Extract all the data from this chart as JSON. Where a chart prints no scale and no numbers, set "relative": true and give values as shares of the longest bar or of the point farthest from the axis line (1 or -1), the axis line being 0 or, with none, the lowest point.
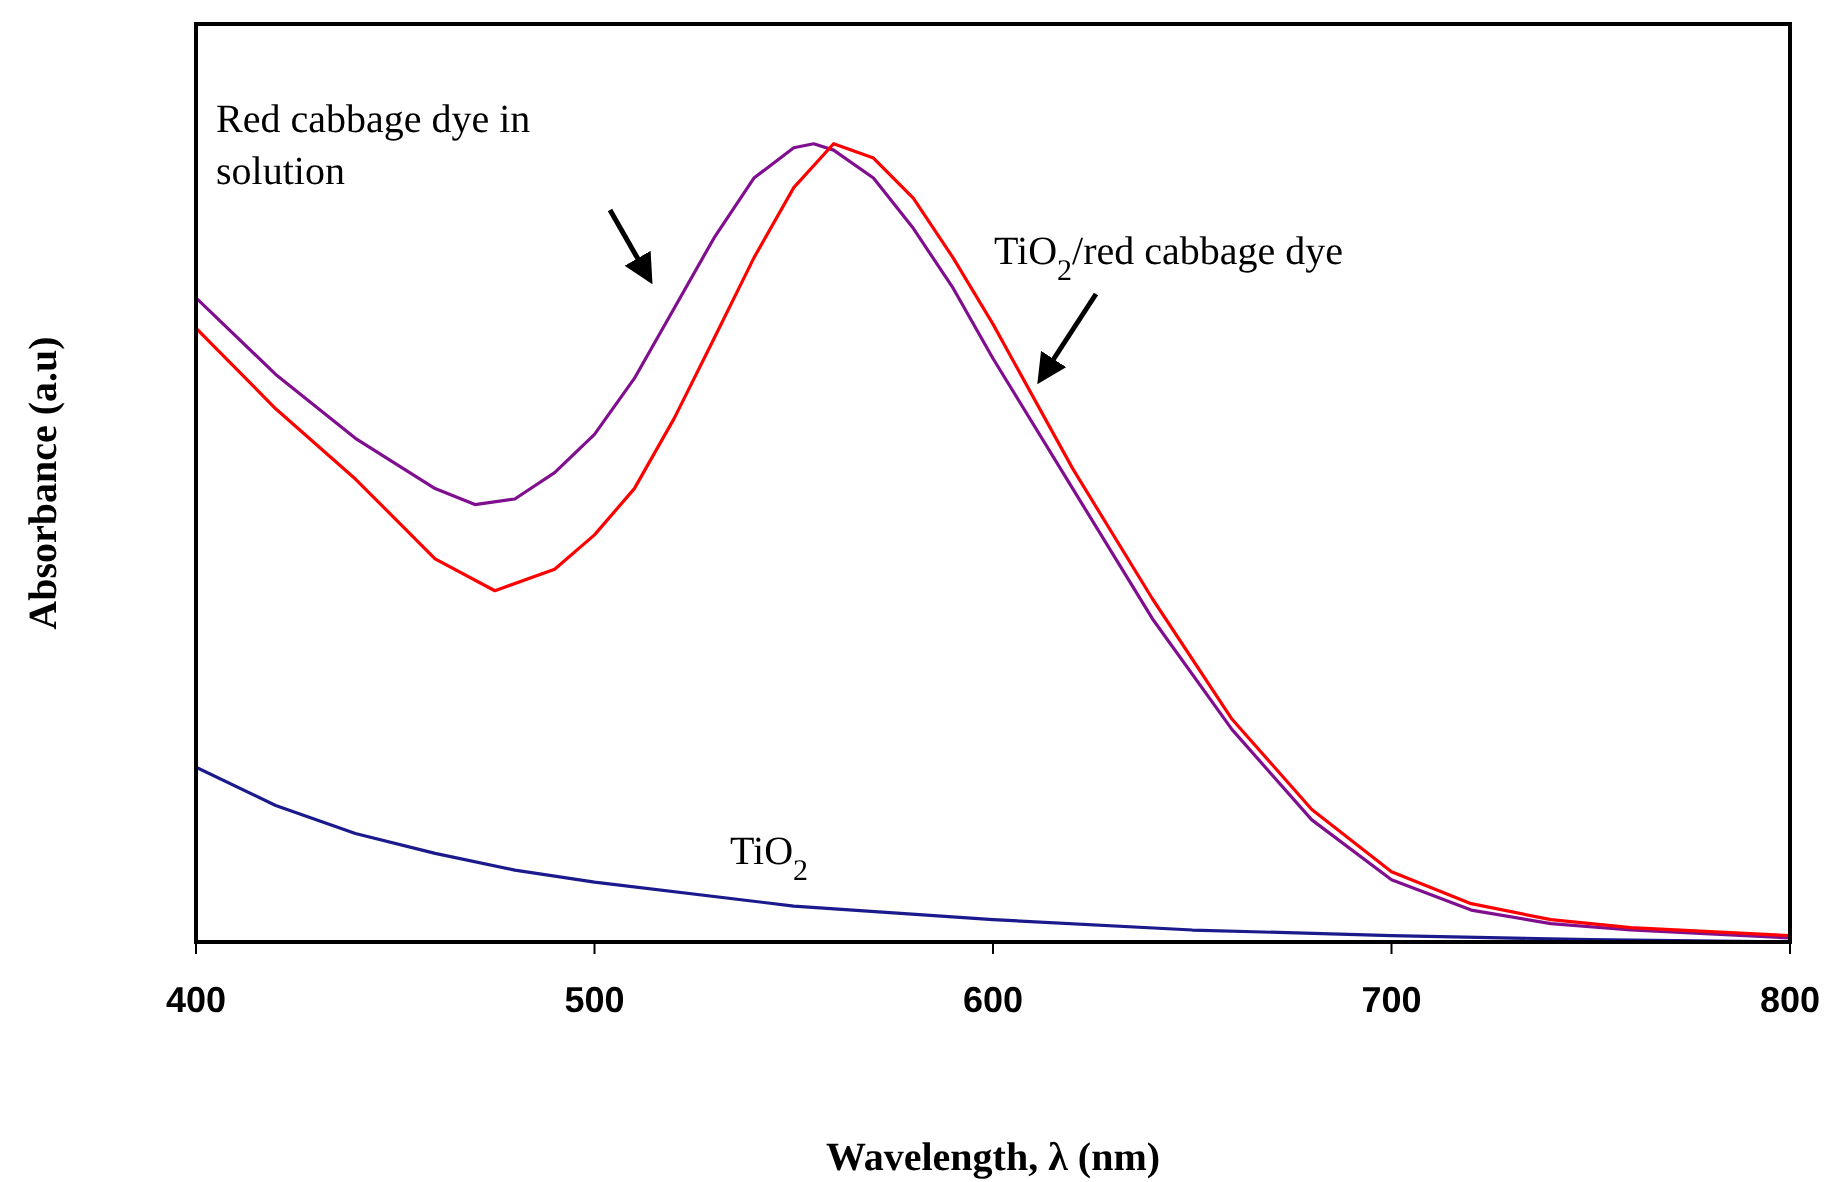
{
  "chart_data": {
    "type": "line",
    "relative": true,
    "xlabel": "Wavelength, λ (nm)",
    "ylabel": "Absorbance (a.u)",
    "xlim": [
      400,
      800
    ],
    "xticks": [
      400,
      500,
      600,
      700,
      800
    ],
    "marker": "none",
    "line_style": "solid",
    "series": [
      {
        "color": "#800f8f",
        "x": [
          400,
          420,
          440,
          460,
          470,
          480,
          490,
          500,
          510,
          520,
          530,
          540,
          550,
          555,
          560,
          570,
          580,
          590,
          600,
          620,
          640,
          660,
          680,
          700,
          720,
          740,
          760,
          780,
          800
        ],
        "values": [
          0.807,
          0.711,
          0.631,
          0.568,
          0.548,
          0.555,
          0.588,
          0.636,
          0.706,
          0.794,
          0.882,
          0.957,
          0.995,
          1,
          0.992,
          0.957,
          0.894,
          0.819,
          0.731,
          0.568,
          0.405,
          0.266,
          0.153,
          0.078,
          0.04,
          0.023,
          0.015,
          0.01,
          0.005
        ]
      },
      {
        "color": "#ff0000",
        "x": [
          400,
          420,
          440,
          460,
          475,
          490,
          500,
          510,
          520,
          530,
          540,
          550,
          560,
          570,
          580,
          590,
          600,
          620,
          640,
          660,
          680,
          700,
          720,
          740,
          760,
          780,
          800
        ],
        "values": [
          0.769,
          0.668,
          0.58,
          0.48,
          0.44,
          0.467,
          0.51,
          0.568,
          0.656,
          0.756,
          0.857,
          0.945,
          1,
          0.982,
          0.932,
          0.857,
          0.774,
          0.593,
          0.43,
          0.279,
          0.166,
          0.088,
          0.048,
          0.028,
          0.018,
          0.013,
          0.008
        ]
      },
      {
        "color": "#1a1a8c",
        "x": [
          400,
          420,
          440,
          460,
          480,
          500,
          550,
          600,
          650,
          700,
          750,
          800
        ],
        "values": [
          0.219,
          0.171,
          0.136,
          0.111,
          0.09,
          0.075,
          0.045,
          0.028,
          0.015,
          0.008,
          0.003,
          0
        ]
      }
    ],
    "annotations": [
      "Red cabbage dye in solution",
      "TiO$_{2}$/red cabbage dye",
      "TiO$_{2}$"
    ]
  }
}
